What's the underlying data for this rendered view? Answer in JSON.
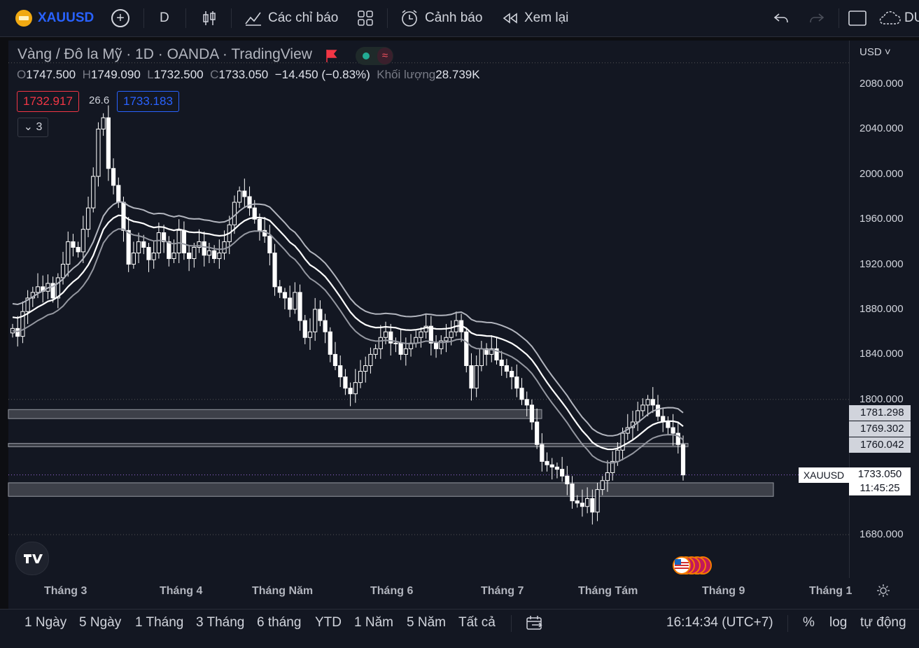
{
  "toolbar": {
    "symbol": "XAUUSD",
    "interval": "D",
    "indicators_label": "Các chỉ báo",
    "alert_label": "Cảnh báo",
    "replay_label": "Xem lại",
    "right_cut_label": "DU"
  },
  "legend": {
    "title": "Vàng / Đô la Mỹ · 1D · OANDA · TradingView",
    "open_label": "O",
    "open": "1747.500",
    "high_label": "H",
    "high": "1749.090",
    "low_label": "L",
    "low": "1732.500",
    "close_label": "C",
    "close": "1733.050",
    "change": "−14.450 (−0.83%)",
    "volume_label": "Khối lượng",
    "volume": "28.739K",
    "sell_price": "1732.917",
    "spread": "26.6",
    "buy_price": "1733.183",
    "collapse_count": "3"
  },
  "axis": {
    "currency": "USD",
    "ticks": [
      "2080.000",
      "2040.000",
      "2000.000",
      "1960.000",
      "1920.000",
      "1880.000",
      "1840.000",
      "1800.000",
      "1680.000"
    ],
    "price_badges": [
      "1781.298",
      "1769.302",
      "1760.042"
    ],
    "current_symbol": "XAUUSD",
    "current_price": "1733.050",
    "countdown": "11:45:25",
    "x_labels": [
      "Tháng 3",
      "Tháng 4",
      "Tháng Năm",
      "Tháng 6",
      "Tháng 7",
      "Tháng Tám",
      "Tháng 9",
      "Tháng 1"
    ]
  },
  "bottom": {
    "ranges": [
      "1 Ngày",
      "5 Ngày",
      "1 Tháng",
      "3 Tháng",
      "6 tháng",
      "YTD",
      "1 Năm",
      "5 Năm",
      "Tất cả"
    ],
    "clock": "16:14:34 (UTC+7)",
    "percent": "%",
    "log": "log",
    "auto": "tự động"
  },
  "colors": {
    "background": "#131722",
    "sell": "#f23645",
    "buy": "#2962ff",
    "symbol_accent": "#2962ff",
    "candles": "#ffffff"
  },
  "icons": [
    "gold-symbol-icon",
    "add-symbol-icon",
    "candles-icon",
    "indicators-icon",
    "templates-icon",
    "alert-icon",
    "replay-icon",
    "undo-icon",
    "redo-icon",
    "layout-icon",
    "cloud-icon",
    "flag-icon",
    "tradingview-logo-icon",
    "us-flag-icon",
    "settings-icon",
    "date-range-icon"
  ],
  "chart_data": {
    "type": "candlestick",
    "y_range": [
      1660,
      2100
    ],
    "price_levels": [
      1800,
      1760,
      1733.05
    ],
    "zones": [
      {
        "low": 1783,
        "high": 1791
      },
      {
        "low": 1758,
        "high": 1761
      },
      {
        "low": 1714,
        "high": 1726
      }
    ],
    "closes": [
      1863,
      1856,
      1878,
      1890,
      1895,
      1900,
      1896,
      1903,
      1890,
      1908,
      1920,
      1940,
      1935,
      1931,
      1951,
      1970,
      1998,
      2040,
      2050,
      2005,
      1990,
      1975,
      1950,
      1920,
      1930,
      1940,
      1935,
      1924,
      1930,
      1948,
      1940,
      1925,
      1930,
      1950,
      1930,
      1925,
      1935,
      1940,
      1928,
      1932,
      1925,
      1930,
      1940,
      1955,
      1975,
      1985,
      1980,
      1970,
      1960,
      1950,
      1945,
      1930,
      1900,
      1895,
      1890,
      1880,
      1895,
      1870,
      1855,
      1860,
      1880,
      1870,
      1860,
      1840,
      1830,
      1820,
      1810,
      1805,
      1815,
      1825,
      1830,
      1840,
      1845,
      1855,
      1860,
      1850,
      1850,
      1840,
      1845,
      1850,
      1855,
      1860,
      1865,
      1850,
      1845,
      1852,
      1855,
      1860,
      1870,
      1860,
      1830,
      1810,
      1830,
      1845,
      1840,
      1845,
      1835,
      1830,
      1825,
      1820,
      1810,
      1800,
      1795,
      1780,
      1760,
      1745,
      1742,
      1740,
      1738,
      1732,
      1725,
      1710,
      1708,
      1705,
      1712,
      1700,
      1720,
      1728,
      1735,
      1745,
      1755,
      1770,
      1775,
      1780,
      1790,
      1795,
      1800,
      1795,
      1785,
      1780,
      1775,
      1770,
      1760,
      1733
    ],
    "ema_bands": [
      {
        "name": "upper",
        "last": 1781.298
      },
      {
        "name": "mid",
        "last": 1769.302
      },
      {
        "name": "lower",
        "last": 1760.042
      }
    ]
  }
}
